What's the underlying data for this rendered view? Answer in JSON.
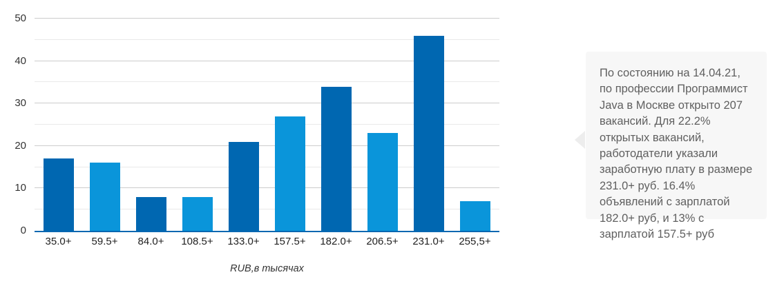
{
  "chart_data": {
    "type": "bar",
    "title": "",
    "categories": [
      "35.0+",
      "59.5+",
      "84.0+",
      "108.5+",
      "133.0+",
      "157.5+",
      "182.0+",
      "206.5+",
      "231.0+",
      "255,5+"
    ],
    "values": [
      17,
      16,
      8,
      8,
      21,
      27,
      34,
      23,
      46,
      7
    ],
    "xlabel": "RUB,в тысячах",
    "ylabel": "",
    "ylim": [
      0,
      50
    ],
    "yticks": [
      0,
      10,
      20,
      30,
      40,
      50
    ],
    "minor_grid_step": 5,
    "grid": "horizontal gridlines on, minor every 5, major every 10",
    "legend": "none",
    "bar_pattern": [
      "dark",
      "light",
      "dark",
      "light",
      "dark",
      "light",
      "dark",
      "light",
      "dark",
      "light"
    ],
    "colors": {
      "bar_dark": "#0067b1",
      "bar_light": "#0a95da",
      "axis_line": "#0067b1",
      "grid_major": "#cccccc",
      "grid_minor": "#e9e9e9",
      "ytick_label": "#333333",
      "xtick_label": "#1f1f1f"
    }
  },
  "info_panel": {
    "text": "По состоянию на 14.04.21, по профессии Программист Java в Москве открыто 207 вакансий. Для 22.2% открытых вакансий, работодатели указали заработную плату в размере 231.0+ руб. 16.4% объявлений с зарплатой 182.0+ руб, и 13% с зарплатой 157.5+ руб",
    "background": "#f7f7f7",
    "text_color": "#5f5f5f",
    "nav_icon": "chevron-left-icon",
    "nav_icon_color": "#ededed"
  }
}
